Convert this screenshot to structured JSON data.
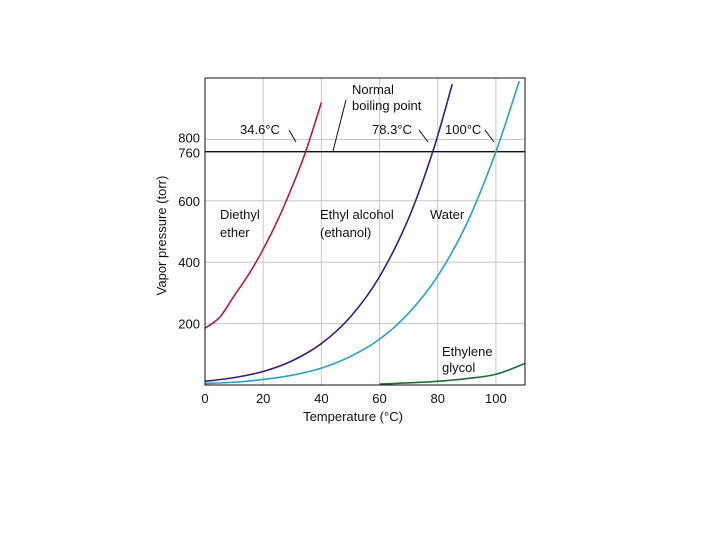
{
  "chart_data": {
    "type": "line",
    "xlabel": "Temperature (°C)",
    "ylabel": "Vapor pressure (torr)",
    "xlim": [
      0,
      110
    ],
    "ylim": [
      0,
      1000
    ],
    "x_ticks": [
      0,
      20,
      40,
      60,
      80,
      100
    ],
    "x_tick_labels": [
      "0",
      "20",
      "40",
      "60",
      "80",
      "100"
    ],
    "y_ticks": [
      200,
      400,
      600,
      760,
      800
    ],
    "y_tick_labels": [
      "200",
      "400",
      "600",
      "760",
      "800"
    ],
    "grid": true,
    "reference_line": {
      "y": 760
    },
    "series": [
      {
        "name": "Diethyl ether",
        "color": "#b0203a",
        "x": [
          0,
          5,
          10,
          15,
          20,
          25,
          30,
          34.6,
          40
        ],
        "y": [
          185,
          220,
          290,
          360,
          442,
          537,
          647,
          760,
          920
        ]
      },
      {
        "name": "Ethyl alcohol (ethanol)",
        "color": "#3a1d7a",
        "x": [
          0,
          10,
          20,
          30,
          40,
          50,
          60,
          70,
          78.3,
          85
        ],
        "y": [
          12,
          24,
          44,
          79,
          135,
          222,
          353,
          543,
          760,
          980
        ]
      },
      {
        "name": "Water",
        "color": "#2aa0cc",
        "x": [
          0,
          10,
          20,
          30,
          40,
          50,
          60,
          70,
          80,
          90,
          100,
          108
        ],
        "y": [
          5,
          9,
          18,
          32,
          55,
          93,
          149,
          234,
          355,
          526,
          760,
          990
        ]
      },
      {
        "name": "Ethylene glycol",
        "color": "#1f6e35",
        "x": [
          60,
          70,
          80,
          90,
          100,
          110
        ],
        "y": [
          3,
          7,
          12,
          21,
          35,
          70
        ]
      }
    ],
    "annotations": {
      "normal_bp": [
        "Normal",
        "boiling point"
      ],
      "bp_ether": "34.6°C",
      "bp_ethanol": "78.3°C",
      "bp_water": "100°C",
      "label_ether": [
        "Diethyl",
        "ether"
      ],
      "label_ethanol": [
        "Ethyl alcohol",
        "(ethanol)"
      ],
      "label_water": "Water",
      "label_glycol": [
        "Ethylene",
        "glycol"
      ]
    }
  }
}
